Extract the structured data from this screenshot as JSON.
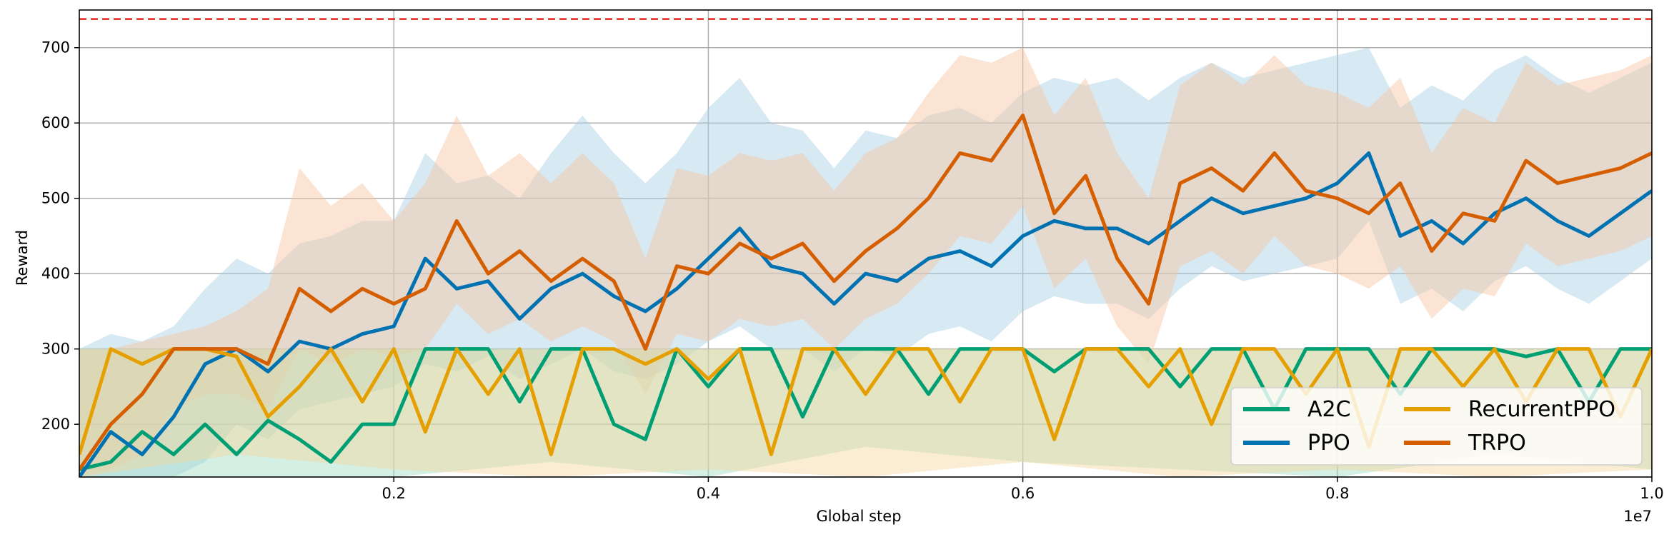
{
  "chart_data": {
    "type": "line",
    "title": "",
    "xlabel": "Global step",
    "ylabel": "Reward",
    "x_offset_label": "1e7",
    "xlim": [
      0,
      1.0
    ],
    "ylim": [
      130,
      750
    ],
    "xticks": [
      0.2,
      0.4,
      0.6,
      0.8,
      1.0
    ],
    "xtick_labels": [
      "0.2",
      "0.4",
      "0.6",
      "0.8",
      "1.0"
    ],
    "yticks": [
      200,
      300,
      400,
      500,
      600,
      700
    ],
    "ytick_labels": [
      "200",
      "300",
      "400",
      "500",
      "600",
      "700"
    ],
    "grid": true,
    "legend_position": "bottom-right",
    "reference_line": {
      "y": 738,
      "color": "#e8261f",
      "style": "dashed"
    },
    "colors": {
      "A2C": "#009e73",
      "PPO": "#0072b2",
      "RecurrentPPO": "#e69f00",
      "TRPO": "#d55e00",
      "PPO_band": "#a6cee3",
      "TRPO_band": "#f7c49f",
      "A2C_band": "#9fdcc4",
      "RecurrentPPO_band": "#f6d79e"
    },
    "series": [
      {
        "name": "A2C",
        "x": [
          0.0,
          0.02,
          0.04,
          0.06,
          0.08,
          0.1,
          0.12,
          0.14,
          0.16,
          0.18,
          0.2,
          0.22,
          0.24,
          0.26,
          0.28,
          0.3,
          0.32,
          0.34,
          0.36,
          0.38,
          0.4,
          0.42,
          0.44,
          0.46,
          0.48,
          0.5,
          0.52,
          0.54,
          0.56,
          0.58,
          0.6,
          0.62,
          0.64,
          0.66,
          0.68,
          0.7,
          0.72,
          0.74,
          0.76,
          0.78,
          0.8,
          0.82,
          0.84,
          0.86,
          0.88,
          0.9,
          0.92,
          0.94,
          0.96,
          0.98,
          1.0
        ],
        "y": [
          140,
          150,
          190,
          160,
          200,
          160,
          205,
          180,
          150,
          200,
          200,
          300,
          300,
          300,
          230,
          300,
          300,
          200,
          180,
          300,
          250,
          300,
          300,
          210,
          300,
          300,
          300,
          240,
          300,
          300,
          300,
          270,
          300,
          300,
          300,
          250,
          300,
          300,
          220,
          300,
          300,
          300,
          240,
          300,
          300,
          300,
          290,
          300,
          230,
          300,
          300
        ]
      },
      {
        "name": "PPO",
        "x": [
          0.0,
          0.02,
          0.04,
          0.06,
          0.08,
          0.1,
          0.12,
          0.14,
          0.16,
          0.18,
          0.2,
          0.22,
          0.24,
          0.26,
          0.28,
          0.3,
          0.32,
          0.34,
          0.36,
          0.38,
          0.4,
          0.42,
          0.44,
          0.46,
          0.48,
          0.5,
          0.52,
          0.54,
          0.56,
          0.58,
          0.6,
          0.62,
          0.64,
          0.66,
          0.68,
          0.7,
          0.72,
          0.74,
          0.76,
          0.78,
          0.8,
          0.82,
          0.84,
          0.86,
          0.88,
          0.9,
          0.92,
          0.94,
          0.96,
          0.98,
          1.0
        ],
        "y": [
          130,
          190,
          160,
          210,
          280,
          300,
          270,
          310,
          300,
          320,
          330,
          420,
          380,
          390,
          340,
          380,
          400,
          370,
          350,
          380,
          420,
          460,
          410,
          400,
          360,
          400,
          390,
          420,
          430,
          410,
          450,
          470,
          460,
          460,
          440,
          470,
          500,
          480,
          490,
          500,
          520,
          560,
          450,
          470,
          440,
          480,
          500,
          470,
          450,
          480,
          510
        ]
      },
      {
        "name": "RecurrentPPO",
        "x": [
          0.0,
          0.02,
          0.04,
          0.06,
          0.08,
          0.1,
          0.12,
          0.14,
          0.16,
          0.18,
          0.2,
          0.22,
          0.24,
          0.26,
          0.28,
          0.3,
          0.32,
          0.34,
          0.36,
          0.38,
          0.4,
          0.42,
          0.44,
          0.46,
          0.48,
          0.5,
          0.52,
          0.54,
          0.56,
          0.58,
          0.6,
          0.62,
          0.64,
          0.66,
          0.68,
          0.7,
          0.72,
          0.74,
          0.76,
          0.78,
          0.8,
          0.82,
          0.84,
          0.86,
          0.88,
          0.9,
          0.92,
          0.94,
          0.96,
          0.98,
          1.0
        ],
        "y": [
          160,
          300,
          280,
          300,
          300,
          290,
          210,
          250,
          300,
          230,
          300,
          190,
          300,
          240,
          300,
          160,
          300,
          300,
          280,
          300,
          260,
          300,
          160,
          300,
          300,
          240,
          300,
          300,
          230,
          300,
          300,
          180,
          300,
          300,
          250,
          300,
          200,
          300,
          300,
          240,
          300,
          170,
          300,
          300,
          250,
          300,
          230,
          300,
          300,
          210,
          300
        ]
      },
      {
        "name": "TRPO",
        "x": [
          0.0,
          0.02,
          0.04,
          0.06,
          0.08,
          0.1,
          0.12,
          0.14,
          0.16,
          0.18,
          0.2,
          0.22,
          0.24,
          0.26,
          0.28,
          0.3,
          0.32,
          0.34,
          0.36,
          0.38,
          0.4,
          0.42,
          0.44,
          0.46,
          0.48,
          0.5,
          0.52,
          0.54,
          0.56,
          0.58,
          0.6,
          0.62,
          0.64,
          0.66,
          0.68,
          0.7,
          0.72,
          0.74,
          0.76,
          0.78,
          0.8,
          0.82,
          0.84,
          0.86,
          0.88,
          0.9,
          0.92,
          0.94,
          0.96,
          0.98,
          1.0
        ],
        "y": [
          140,
          200,
          240,
          300,
          300,
          300,
          280,
          380,
          350,
          380,
          360,
          380,
          470,
          400,
          430,
          390,
          420,
          390,
          300,
          410,
          400,
          440,
          420,
          440,
          390,
          430,
          460,
          500,
          560,
          550,
          610,
          480,
          530,
          420,
          360,
          520,
          540,
          510,
          560,
          510,
          500,
          480,
          520,
          430,
          480,
          470,
          550,
          520,
          530,
          540,
          560
        ]
      }
    ],
    "bands": [
      {
        "name": "PPO",
        "x": [
          0.0,
          0.02,
          0.04,
          0.06,
          0.08,
          0.1,
          0.12,
          0.14,
          0.16,
          0.18,
          0.2,
          0.22,
          0.24,
          0.26,
          0.28,
          0.3,
          0.32,
          0.34,
          0.36,
          0.38,
          0.4,
          0.42,
          0.44,
          0.46,
          0.48,
          0.5,
          0.52,
          0.54,
          0.56,
          0.58,
          0.6,
          0.62,
          0.64,
          0.66,
          0.68,
          0.7,
          0.72,
          0.74,
          0.76,
          0.78,
          0.8,
          0.82,
          0.84,
          0.86,
          0.88,
          0.9,
          0.92,
          0.94,
          0.96,
          0.98,
          1.0
        ],
        "lower": [
          130,
          130,
          130,
          130,
          150,
          200,
          180,
          220,
          230,
          240,
          250,
          280,
          270,
          290,
          260,
          280,
          300,
          270,
          260,
          280,
          310,
          330,
          300,
          300,
          270,
          300,
          290,
          320,
          330,
          310,
          350,
          370,
          360,
          360,
          340,
          380,
          410,
          390,
          400,
          410,
          420,
          470,
          360,
          380,
          350,
          390,
          410,
          380,
          360,
          390,
          420
        ],
        "upper": [
          300,
          320,
          310,
          330,
          380,
          420,
          400,
          440,
          450,
          470,
          470,
          560,
          520,
          530,
          500,
          560,
          610,
          560,
          520,
          560,
          620,
          660,
          600,
          590,
          540,
          590,
          580,
          610,
          620,
          600,
          640,
          660,
          650,
          660,
          630,
          660,
          680,
          660,
          670,
          680,
          690,
          700,
          620,
          650,
          630,
          670,
          690,
          660,
          640,
          660,
          680
        ]
      },
      {
        "name": "TRPO",
        "x": [
          0.0,
          0.02,
          0.04,
          0.06,
          0.08,
          0.1,
          0.12,
          0.14,
          0.16,
          0.18,
          0.2,
          0.22,
          0.24,
          0.26,
          0.28,
          0.3,
          0.32,
          0.34,
          0.36,
          0.38,
          0.4,
          0.42,
          0.44,
          0.46,
          0.48,
          0.5,
          0.52,
          0.54,
          0.56,
          0.58,
          0.6,
          0.62,
          0.64,
          0.66,
          0.68,
          0.7,
          0.72,
          0.74,
          0.76,
          0.78,
          0.8,
          0.82,
          0.84,
          0.86,
          0.88,
          0.9,
          0.92,
          0.94,
          0.96,
          0.98,
          1.0
        ],
        "lower": [
          130,
          140,
          160,
          220,
          240,
          240,
          220,
          300,
          280,
          300,
          290,
          300,
          360,
          320,
          340,
          310,
          330,
          310,
          240,
          320,
          310,
          340,
          330,
          340,
          300,
          340,
          360,
          400,
          450,
          440,
          490,
          380,
          420,
          330,
          280,
          410,
          430,
          400,
          450,
          410,
          400,
          380,
          410,
          340,
          380,
          370,
          440,
          410,
          420,
          430,
          450
        ],
        "upper": [
          300,
          300,
          310,
          320,
          330,
          350,
          380,
          540,
          490,
          520,
          470,
          520,
          610,
          530,
          560,
          520,
          560,
          520,
          420,
          540,
          530,
          560,
          550,
          560,
          510,
          560,
          580,
          640,
          690,
          680,
          700,
          610,
          660,
          560,
          500,
          650,
          680,
          650,
          690,
          650,
          640,
          620,
          660,
          560,
          620,
          600,
          680,
          650,
          660,
          670,
          690
        ]
      },
      {
        "name": "A2C",
        "x": [
          0.0,
          0.1,
          0.2,
          0.3,
          0.4,
          0.5,
          0.6,
          0.7,
          0.8,
          0.9,
          1.0
        ],
        "lower": [
          130,
          130,
          130,
          150,
          130,
          170,
          150,
          140,
          130,
          160,
          140
        ],
        "upper": [
          300,
          300,
          300,
          300,
          300,
          300,
          300,
          300,
          300,
          300,
          300
        ]
      },
      {
        "name": "RecurrentPPO",
        "x": [
          0.0,
          0.1,
          0.2,
          0.3,
          0.4,
          0.5,
          0.6,
          0.7,
          0.8,
          0.9,
          1.0
        ],
        "lower": [
          130,
          160,
          140,
          130,
          140,
          130,
          150,
          130,
          140,
          130,
          140
        ],
        "upper": [
          300,
          300,
          300,
          300,
          300,
          300,
          300,
          300,
          300,
          300,
          300
        ]
      }
    ],
    "legend": {
      "entries": [
        "A2C",
        "RecurrentPPO",
        "PPO",
        "TRPO"
      ]
    }
  }
}
